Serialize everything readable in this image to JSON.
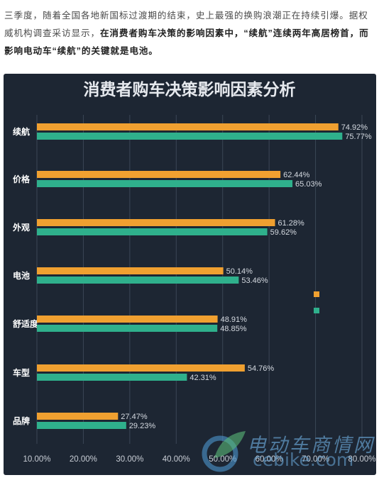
{
  "article": {
    "p1": "三季度，随着全国各地新国标过渡期的结束，史上最强的换购浪潮正在持续引爆。据权威机构调查采访显示，",
    "p2": "在消费者购车决策的影响因素中，“续航”连续两年高居榜首，而影响电动车“续航”的关键就是电池。"
  },
  "watermark": {
    "cn": "电动车商情网",
    "en": "cebike.com"
  },
  "colors": {
    "series_a": "#f0a030",
    "series_b": "#2fb08c",
    "background": "#1d2633",
    "grid": "#3b4656"
  },
  "chart_data": {
    "type": "bar",
    "orientation": "horizontal",
    "title": "消费者购车决策影响因素分析",
    "categories": [
      "续航",
      "价格",
      "外观",
      "电池",
      "舒适度",
      "车型",
      "品牌"
    ],
    "series": [
      {
        "values": [
          74.92,
          62.44,
          61.28,
          50.14,
          48.91,
          54.76,
          27.47
        ]
      },
      {
        "values": [
          75.77,
          65.03,
          59.62,
          53.46,
          48.85,
          42.31,
          29.23
        ]
      }
    ],
    "value_labels": [
      [
        "74.92%",
        "62.44%",
        "61.28%",
        "50.14%",
        "48.91%",
        "54.76%",
        "27.47%"
      ],
      [
        "75.77%",
        "65.03%",
        "59.62%",
        "53.46%",
        "48.85%",
        "42.31%",
        "29.23%"
      ]
    ],
    "xlim": [
      10,
      80
    ],
    "xticks": [
      "10.00%",
      "20.00%",
      "30.00%",
      "40.00%",
      "50.00%",
      "60.00%",
      "70.00%",
      "80.00%"
    ],
    "grid": true,
    "legend": "right, unlabeled color markers"
  }
}
